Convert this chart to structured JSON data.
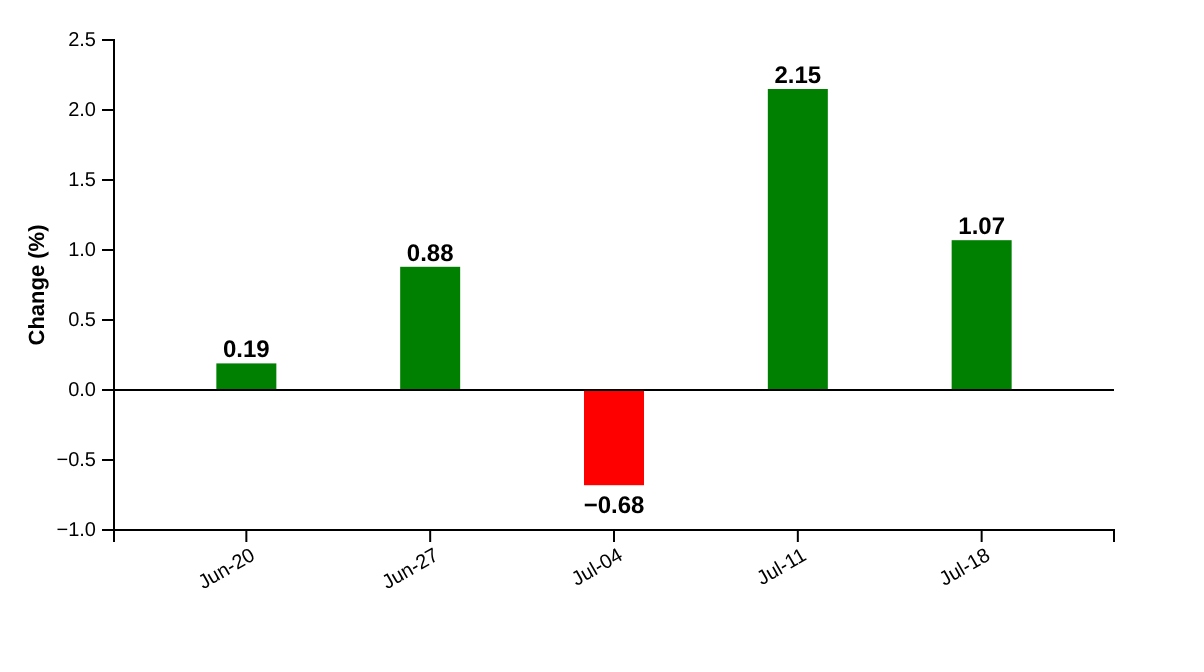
{
  "chart_data": {
    "type": "bar",
    "ylabel": "Change (%)",
    "categories": [
      "Jun-20",
      "Jun-27",
      "Jul-04",
      "Jul-11",
      "Jul-18"
    ],
    "values": [
      0.19,
      0.88,
      -0.68,
      2.15,
      1.07
    ],
    "colors": [
      "#008000",
      "#008000",
      "#ff0000",
      "#008000",
      "#008000"
    ],
    "ylim": [
      -1.0,
      2.5
    ],
    "yticks": [
      {
        "value": -1.0,
        "label": "−1.0"
      },
      {
        "value": -0.5,
        "label": "−0.5"
      },
      {
        "value": 0,
        "label": "0.0"
      },
      {
        "value": 0.5,
        "label": "0.5"
      },
      {
        "value": 1.0,
        "label": "1.0"
      },
      {
        "value": 1.5,
        "label": "1.5"
      },
      {
        "value": 2.0,
        "label": "2.0"
      },
      {
        "value": 2.5,
        "label": "2.5"
      }
    ],
    "value_labels": [
      "0.19",
      "0.88",
      "−0.68",
      "2.15",
      "1.07"
    ],
    "ref_lines": [
      {
        "axis": "y",
        "value": 0
      }
    ],
    "grid": false
  }
}
